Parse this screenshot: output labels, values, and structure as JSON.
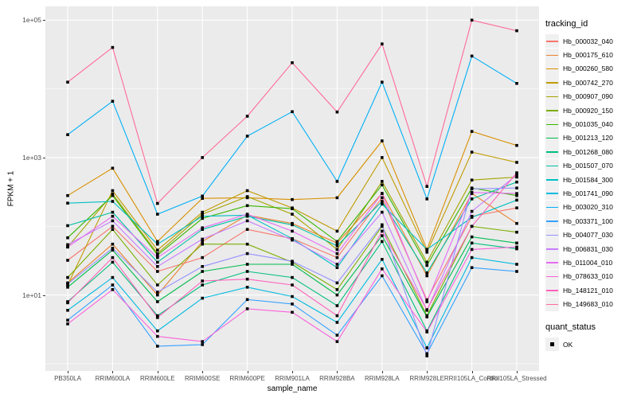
{
  "chart_data": {
    "type": "line",
    "title": "",
    "xlabel": "sample_name",
    "ylabel": "FPKM + 1",
    "y_scale": "log10",
    "ylim_log10": [
      -0.105,
      5.2
    ],
    "y_ticks": [
      {
        "label": "1e+01",
        "value": 10
      },
      {
        "label": "1e+03",
        "value": 1000
      },
      {
        "label": "1e+05",
        "value": 100000
      }
    ],
    "y_minor_log10": [
      0,
      2,
      4
    ],
    "grid": "major-and-minor-white-on-gray",
    "legend_position": "right",
    "point_shape": "filled-square",
    "point_color": "#000000",
    "categories": [
      "PB350LA",
      "RRIM600LA",
      "RRIM600LE",
      "RRIM600SE",
      "RRIM600PE",
      "RRIM901LA",
      "RRIM928BA",
      "RRIM928LA",
      "RRIM928LE",
      "RRII105LA_Control",
      "RRII105LA_Stressed"
    ],
    "series": [
      {
        "name": "Hb_000032_040",
        "color": "#F8766D",
        "values": [
          32,
          100,
          22,
          35,
          90,
          66,
          35,
          260,
          8.5,
          140,
          185
        ]
      },
      {
        "name": "Hb_000175_610",
        "color": "#EA8331",
        "values": [
          15,
          55,
          10,
          60,
          145,
          110,
          57,
          300,
          19,
          300,
          110
        ]
      },
      {
        "name": "Hb_000260_580",
        "color": "#D89000",
        "values": [
          280,
          700,
          60,
          255,
          260,
          245,
          260,
          1750,
          46,
          2400,
          1500
        ]
      },
      {
        "name": "Hb_000742_270",
        "color": "#C09B00",
        "values": [
          14,
          330,
          45,
          160,
          330,
          185,
          85,
          1000,
          42,
          1200,
          850
        ]
      },
      {
        "name": "Hb_000907_090",
        "color": "#A3A500",
        "values": [
          50,
          295,
          40,
          150,
          270,
          150,
          46,
          450,
          30,
          470,
          520
        ]
      },
      {
        "name": "Hb_000920_150",
        "color": "#7CAE00",
        "values": [
          18,
          90,
          14,
          55,
          55,
          30,
          12,
          100,
          5,
          100,
          82
        ]
      },
      {
        "name": "Hb_001035_040",
        "color": "#39B600",
        "values": [
          68,
          280,
          38,
          130,
          200,
          180,
          60,
          400,
          27,
          360,
          280
        ]
      },
      {
        "name": "Hb_001213_120",
        "color": "#00BB4E",
        "values": [
          13,
          45,
          8,
          22,
          28,
          28,
          10,
          73,
          4.8,
          70,
          57
        ]
      },
      {
        "name": "Hb_001268_080",
        "color": "#00BF7D",
        "values": [
          8,
          30,
          5,
          14,
          22,
          18,
          7,
          60,
          3,
          57,
          47
        ]
      },
      {
        "name": "Hb_001507_070",
        "color": "#00C1A3",
        "values": [
          102,
          160,
          30,
          90,
          140,
          105,
          52,
          230,
          21,
          250,
          440
        ]
      },
      {
        "name": "Hb_001584_300",
        "color": "#00BFC4",
        "values": [
          217,
          230,
          55,
          140,
          145,
          66,
          25,
          210,
          46,
          135,
          240
        ]
      },
      {
        "name": "Hb_001741_090",
        "color": "#00BAE0",
        "values": [
          6,
          18,
          3,
          9,
          13,
          9.5,
          4,
          33,
          1.7,
          35,
          28
        ]
      },
      {
        "name": "Hb_003020_310",
        "color": "#00B0F6",
        "values": [
          2150,
          6600,
          150,
          275,
          2050,
          4650,
          450,
          12500,
          250,
          30000,
          12000
        ]
      },
      {
        "name": "Hb_003371_100",
        "color": "#35A2FF",
        "values": [
          4.3,
          14,
          1.8,
          1.9,
          8.6,
          7.4,
          2.6,
          19,
          1.4,
          25,
          22
        ]
      },
      {
        "name": "Hb_004077_030",
        "color": "#9590FF",
        "values": [
          14.5,
          48,
          11,
          26,
          40,
          31,
          15,
          105,
          1.3,
          350,
          360
        ]
      },
      {
        "name": "Hb_006831_030",
        "color": "#C77CFF",
        "values": [
          54,
          120,
          26,
          65,
          120,
          63,
          28,
          160,
          6,
          165,
          560
        ]
      },
      {
        "name": "Hb_011004_010",
        "color": "#E76BF3",
        "values": [
          50,
          140,
          35,
          95,
          150,
          85,
          40,
          300,
          8,
          310,
          300
        ]
      },
      {
        "name": "Hb_078633_010",
        "color": "#FA62DB",
        "values": [
          3.8,
          12,
          2.5,
          2.1,
          6.3,
          5.6,
          2.1,
          24,
          2.9,
          46,
          50
        ]
      },
      {
        "name": "Hb_148121_010",
        "color": "#FF62BC",
        "values": [
          7.7,
          35,
          4.7,
          16,
          17,
          14,
          5,
          85,
          6.1,
          100,
          600
        ]
      },
      {
        "name": "Hb_149683_010",
        "color": "#FF6A98",
        "values": [
          12500,
          40000,
          215,
          1000,
          4000,
          24000,
          4600,
          45000,
          380,
          100000,
          70000
        ]
      }
    ]
  },
  "legend": {
    "color_title": "tracking_id",
    "shape_title": "quant_status",
    "shape_items": [
      {
        "label": "OK"
      }
    ]
  },
  "colors": {
    "panel_bg": "#EBEBEB",
    "grid": "#FFFFFF",
    "tick_label": "#4D4D4D",
    "legend_key_bg": "#F0F0F0",
    "point": "#000000"
  }
}
